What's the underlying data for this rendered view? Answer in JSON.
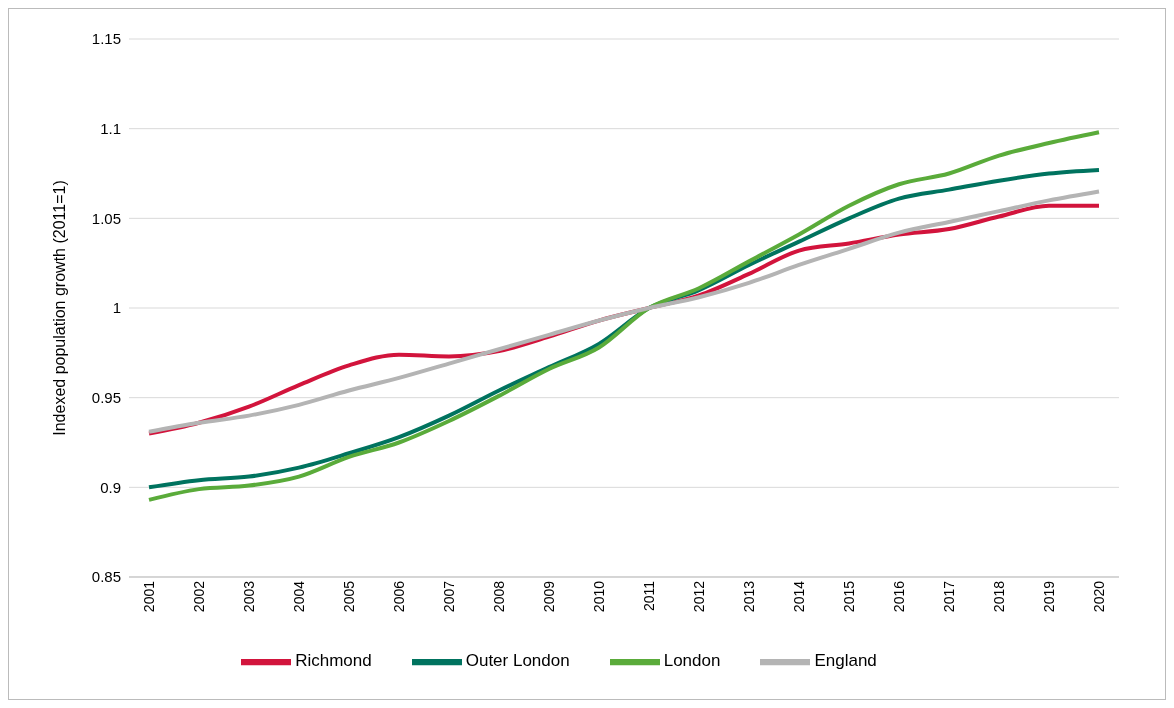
{
  "chart_data": {
    "type": "line",
    "ylabel": "Indexed population growth (2011=1)",
    "categories": [
      "2001",
      "2002",
      "2003",
      "2004",
      "2005",
      "2006",
      "2007",
      "2008",
      "2009",
      "2010",
      "2011",
      "2012",
      "2013",
      "2014",
      "2015",
      "2016",
      "2017",
      "2018",
      "2019",
      "2020"
    ],
    "series": [
      {
        "name": "Richmond",
        "color": "#d2143c",
        "values": [
          0.93,
          0.936,
          0.945,
          0.957,
          0.968,
          0.974,
          0.973,
          0.976,
          0.984,
          0.993,
          1.0,
          1.007,
          1.019,
          1.032,
          1.036,
          1.041,
          1.044,
          1.051,
          1.057,
          1.057
        ]
      },
      {
        "name": "Outer London",
        "color": "#00735f",
        "values": [
          0.9,
          0.904,
          0.906,
          0.911,
          0.919,
          0.928,
          0.94,
          0.954,
          0.967,
          0.98,
          1.0,
          1.01,
          1.024,
          1.037,
          1.05,
          1.061,
          1.066,
          1.071,
          1.075,
          1.077
        ]
      },
      {
        "name": "London",
        "color": "#5aab3a",
        "values": [
          0.893,
          0.899,
          0.901,
          0.906,
          0.917,
          0.925,
          0.937,
          0.951,
          0.966,
          0.978,
          1.0,
          1.011,
          1.026,
          1.041,
          1.057,
          1.069,
          1.075,
          1.085,
          1.092,
          1.098
        ]
      },
      {
        "name": "England",
        "color": "#b4b4b4",
        "values": [
          0.931,
          0.936,
          0.94,
          0.946,
          0.954,
          0.961,
          0.969,
          0.977,
          0.985,
          0.993,
          1.0,
          1.006,
          1.014,
          1.024,
          1.033,
          1.042,
          1.048,
          1.054,
          1.06,
          1.065
        ]
      }
    ],
    "ylim": [
      0.85,
      1.15
    ],
    "yticks": [
      0.85,
      0.9,
      0.95,
      1,
      1.05,
      1.1,
      1.15
    ],
    "grid": "y",
    "legend": "bottom",
    "marker": "none",
    "line_style": "solid"
  }
}
